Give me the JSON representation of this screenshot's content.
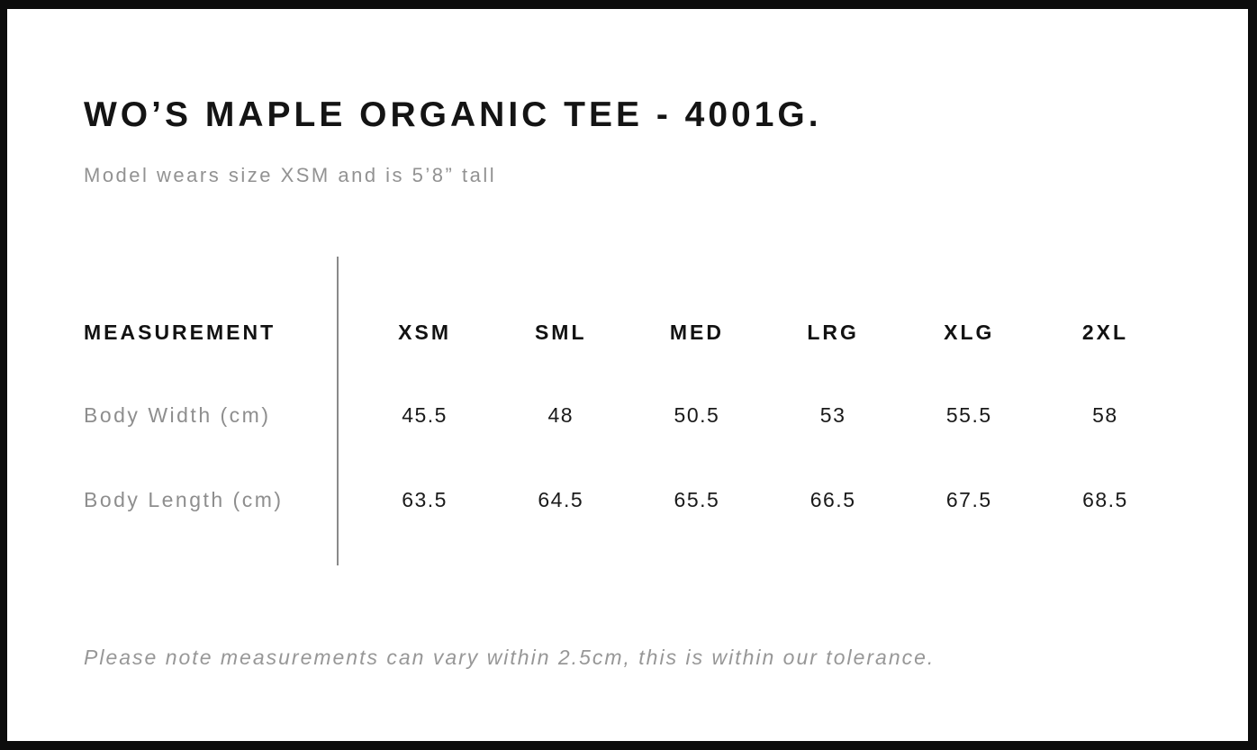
{
  "panel": {
    "title": "WO’S MAPLE ORGANIC TEE - 4001G.",
    "subtitle": "Model wears size XSM and is 5’8” tall",
    "tolerance_note": "Please note measurements can vary within 2.5cm, this is within our tolerance."
  },
  "size_chart": {
    "measurement_header": "MEASUREMENT",
    "sizes": [
      "XSM",
      "SML",
      "MED",
      "LRG",
      "XLG",
      "2XL"
    ],
    "rows": [
      {
        "label": "Body Width (cm)",
        "values": [
          "45.5",
          "48",
          "50.5",
          "53",
          "55.5",
          "58"
        ]
      },
      {
        "label": "Body Length (cm)",
        "values": [
          "63.5",
          "64.5",
          "65.5",
          "66.5",
          "67.5",
          "68.5"
        ]
      }
    ]
  },
  "chart_data": {
    "type": "table",
    "title": "WO’S MAPLE ORGANIC TEE - 4001G.",
    "columns": [
      "MEASUREMENT",
      "XSM",
      "SML",
      "MED",
      "LRG",
      "XLG",
      "2XL"
    ],
    "rows": [
      [
        "Body Width (cm)",
        45.5,
        48,
        50.5,
        53,
        55.5,
        58
      ],
      [
        "Body Length (cm)",
        63.5,
        64.5,
        65.5,
        66.5,
        67.5,
        68.5
      ]
    ]
  },
  "colors": {
    "frame_border": "#0c0c0c",
    "heading_text": "#141414",
    "muted_text": "#929292",
    "value_text": "#1a1a1a",
    "divider": "#8a8a8a",
    "background": "#ffffff"
  }
}
